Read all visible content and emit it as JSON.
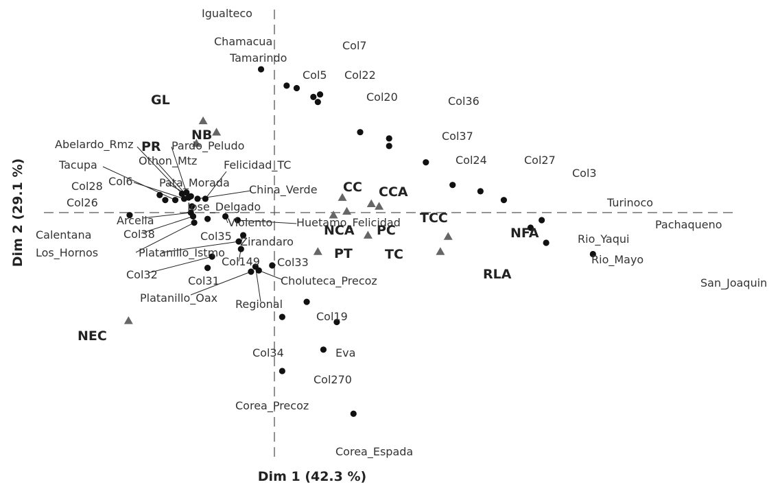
{
  "chart_data": {
    "type": "scatter",
    "xlabel": "Dim 1 (42.3 %)",
    "ylabel": "Dim 2 (29.1 %)",
    "xlim": [
      -1.54,
      3.4
    ],
    "ylim": [
      -1.6,
      1.3
    ],
    "reference_lines": {
      "x": 0,
      "y": 0
    },
    "grid": false,
    "legend": "none",
    "colors": {
      "points": "#111111",
      "variables": "#666666",
      "leader_lines": "#222222",
      "reference_lines": "#555555"
    },
    "points": [
      {
        "label": "Igualteco",
        "x": -0.12,
        "y": 1.14
      },
      {
        "label": "Chamacua",
        "x": 0.11,
        "y": 1.01
      },
      {
        "label": "Tamarindo",
        "x": 0.2,
        "y": 0.99
      },
      {
        "label": "Col7",
        "x": 0.41,
        "y": 0.94
      },
      {
        "label": "Col5",
        "x": 0.35,
        "y": 0.92
      },
      {
        "label": "Col22",
        "x": 0.39,
        "y": 0.88
      },
      {
        "label": "Col20",
        "x": 0.77,
        "y": 0.64
      },
      {
        "label": "Col36",
        "x": 1.03,
        "y": 0.59
      },
      {
        "label": "Col37",
        "x": 1.03,
        "y": 0.53
      },
      {
        "label": "Col24",
        "x": 1.36,
        "y": 0.4
      },
      {
        "label": "Col27",
        "x": 1.6,
        "y": 0.22
      },
      {
        "label": "Col3",
        "x": 1.85,
        "y": 0.17
      },
      {
        "label": "Turinoco",
        "x": 2.06,
        "y": 0.1
      },
      {
        "label": "Pachaqueno",
        "x": 2.4,
        "y": -0.06
      },
      {
        "label": "Rio_Yaqui",
        "x": 2.3,
        "y": -0.12
      },
      {
        "label": "Rio_Mayo",
        "x": 2.44,
        "y": -0.24
      },
      {
        "label": "San_Joaquin",
        "x": 2.86,
        "y": -0.33
      },
      {
        "label": "Abelardo_Rmz",
        "x": -0.83,
        "y": 0.15
      },
      {
        "label": "Pardo_Peludo",
        "x": -0.79,
        "y": 0.16
      },
      {
        "label": "Othon_Mtz",
        "x": -0.77,
        "y": 0.12
      },
      {
        "label": "Tacupa",
        "x": -0.89,
        "y": 0.1
      },
      {
        "label": "Col6",
        "x": -0.81,
        "y": 0.11
      },
      {
        "label": "Col28",
        "x": -1.03,
        "y": 0.14
      },
      {
        "label": "Col26",
        "x": -0.98,
        "y": 0.1
      },
      {
        "label": "Felicidad_TC",
        "x": -0.62,
        "y": 0.11
      },
      {
        "label": "Pata_Morada",
        "x": -0.75,
        "y": 0.13
      },
      {
        "label": "China_Verde",
        "x": -0.69,
        "y": 0.11
      },
      {
        "label": "Jose_Delgado",
        "x": -0.74,
        "y": 0.05
      },
      {
        "label": "Calentana",
        "x": -1.3,
        "y": -0.02
      },
      {
        "label": "Arcelia",
        "x": -0.75,
        "y": 0.0
      },
      {
        "label": "Col38",
        "x": -0.73,
        "y": -0.03
      },
      {
        "label": "Los_Hornos",
        "x": -0.72,
        "y": -0.08
      },
      {
        "label": "Violento",
        "x": -0.44,
        "y": -0.03
      },
      {
        "label": "Huetamo_Felicidad",
        "x": -0.33,
        "y": -0.06
      },
      {
        "label": "Col35",
        "x": -0.6,
        "y": -0.05
      },
      {
        "label": "Zirandaro",
        "x": -0.28,
        "y": -0.18
      },
      {
        "label": "Platanillo_Istmo",
        "x": -0.32,
        "y": -0.23
      },
      {
        "label": "Col149",
        "x": -0.3,
        "y": -0.29
      },
      {
        "label": "Col32",
        "x": -0.56,
        "y": -0.35
      },
      {
        "label": "Col31",
        "x": -0.6,
        "y": -0.44
      },
      {
        "label": "Col33",
        "x": -0.02,
        "y": -0.42
      },
      {
        "label": "Platanillo_Oax",
        "x": -0.21,
        "y": -0.47
      },
      {
        "label": "Regional",
        "x": -0.17,
        "y": -0.43
      },
      {
        "label": "Choluteca_Precoz",
        "x": -0.14,
        "y": -0.46
      },
      {
        "label": "Col19",
        "x": 0.29,
        "y": -0.71
      },
      {
        "label": "Col34",
        "x": 0.07,
        "y": -0.83
      },
      {
        "label": "Eva",
        "x": 0.56,
        "y": -0.87
      },
      {
        "label": "Col270",
        "x": 0.44,
        "y": -1.09
      },
      {
        "label": "Corea_Precoz",
        "x": 0.07,
        "y": -1.26
      },
      {
        "label": "Corea_Espada",
        "x": 0.71,
        "y": -1.6
      }
    ],
    "variables": [
      {
        "label": "GL",
        "x": -0.64,
        "y": 0.73
      },
      {
        "label": "NB",
        "x": -0.52,
        "y": 0.64
      },
      {
        "label": "PR",
        "x": -0.7,
        "y": 0.55
      },
      {
        "label": "CC",
        "x": 0.61,
        "y": 0.12
      },
      {
        "label": "CCA",
        "x": 0.87,
        "y": 0.07
      },
      {
        "label": "TCC",
        "x": 0.94,
        "y": 0.05
      },
      {
        "label": "NCA",
        "x": 0.53,
        "y": -0.02
      },
      {
        "label": "PC",
        "x": 0.65,
        "y": 0.01
      },
      {
        "label": "TC",
        "x": 0.84,
        "y": -0.18
      },
      {
        "label": "PT",
        "x": 0.39,
        "y": -0.31
      },
      {
        "label": "NFA",
        "x": 1.56,
        "y": -0.19
      },
      {
        "label": "RLA",
        "x": 1.49,
        "y": -0.31
      },
      {
        "label": "NEC",
        "x": -1.31,
        "y": -0.86
      }
    ]
  }
}
